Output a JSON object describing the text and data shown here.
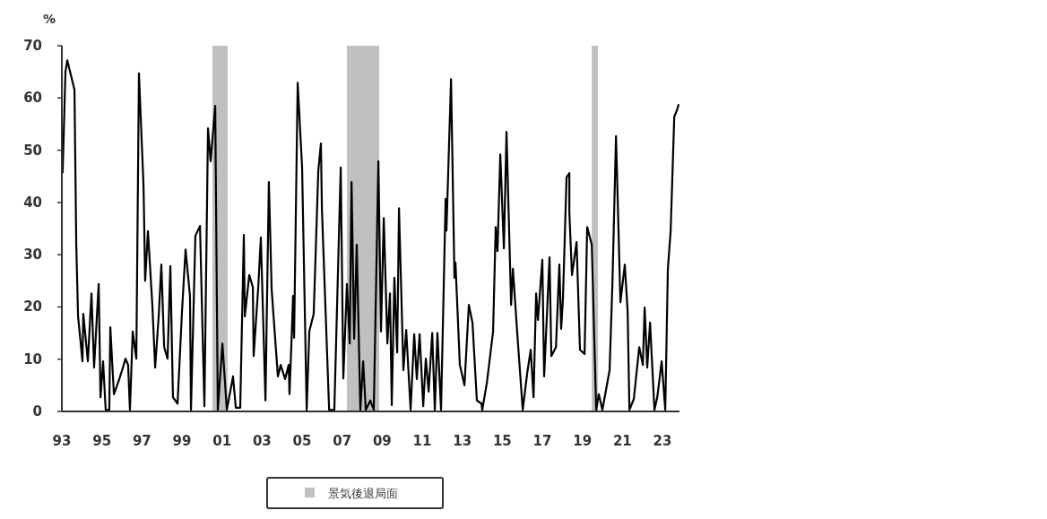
{
  "chart_data": {
    "type": "line",
    "ylabel": "%",
    "legend": "bottom",
    "grid": false,
    "marker": "none",
    "line_style": "solid",
    "xlim": [
      1993,
      2023.85
    ],
    "ylim": [
      0,
      70
    ],
    "xticks": [
      {
        "value": 1993,
        "label": "93"
      },
      {
        "value": 1995,
        "label": "95"
      },
      {
        "value": 1997,
        "label": "97"
      },
      {
        "value": 1999,
        "label": "99"
      },
      {
        "value": 2001,
        "label": "01"
      },
      {
        "value": 2003,
        "label": "03"
      },
      {
        "value": 2005,
        "label": "05"
      },
      {
        "value": 2007,
        "label": "07"
      },
      {
        "value": 2009,
        "label": "09"
      },
      {
        "value": 2011,
        "label": "11"
      },
      {
        "value": 2013,
        "label": "13"
      },
      {
        "value": 2015,
        "label": "15"
      },
      {
        "value": 2017,
        "label": "17"
      },
      {
        "value": 2019,
        "label": "19"
      },
      {
        "value": 2021,
        "label": "21"
      },
      {
        "value": 2023,
        "label": "23"
      }
    ],
    "yticks": [
      0,
      10,
      20,
      30,
      40,
      50,
      60,
      70
    ],
    "bands": [
      {
        "axis": "x",
        "from": 2000.52,
        "to": 2001.28,
        "label": "景気後退局面",
        "color": "#c0c0c0"
      },
      {
        "axis": "x",
        "from": 2007.24,
        "to": 2008.85,
        "color": "#c0c0c0"
      },
      {
        "axis": "x",
        "from": 2019.47,
        "to": 2019.78,
        "color": "#c0c0c0"
      }
    ],
    "series": [
      {
        "color": "#000000",
        "x": [
          1993.04,
          1993.18,
          1993.27,
          1993.63,
          1993.72,
          1993.81,
          1994.03,
          1994.07,
          1994.3,
          1994.48,
          1994.61,
          1994.84,
          1994.93,
          1995.06,
          1995.19,
          1995.37,
          1995.42,
          1995.6,
          1995.87,
          1996.05,
          1996.18,
          1996.31,
          1996.4,
          1996.54,
          1996.72,
          1996.85,
          1997.08,
          1997.16,
          1997.3,
          1997.52,
          1997.66,
          1997.84,
          1997.97,
          1998.11,
          1998.28,
          1998.42,
          1998.55,
          1998.78,
          1999.0,
          1999.18,
          1999.4,
          1999.45,
          1999.67,
          1999.9,
          2000.12,
          2000.3,
          2000.43,
          2000.66,
          2000.79,
          2001.02,
          2001.24,
          2001.55,
          2001.69,
          2001.91,
          2002.09,
          2002.14,
          2002.36,
          2002.54,
          2002.58,
          2002.81,
          2002.94,
          2003.17,
          2003.34,
          2003.48,
          2003.79,
          2003.93,
          2004.15,
          2004.33,
          2004.37,
          2004.46,
          2004.55,
          2004.6,
          2004.78,
          2005.0,
          2005.23,
          2005.36,
          2005.58,
          2005.81,
          2005.94,
          2005.99,
          2006.35,
          2006.61,
          2006.93,
          2007.06,
          2007.24,
          2007.38,
          2007.47,
          2007.6,
          2007.73,
          2007.91,
          2008.05,
          2008.18,
          2008.41,
          2008.58,
          2008.63,
          2008.81,
          2008.94,
          2009.08,
          2009.26,
          2009.39,
          2009.48,
          2009.61,
          2009.75,
          2009.84,
          2010.06,
          2010.2,
          2010.42,
          2010.6,
          2010.73,
          2010.87,
          2011.05,
          2011.18,
          2011.32,
          2011.5,
          2011.63,
          2011.76,
          2011.94,
          2012.17,
          2012.21,
          2012.44,
          2012.61,
          2012.66,
          2012.88,
          2013.11,
          2013.33,
          2013.51,
          2013.73,
          2013.96,
          2014.0,
          2014.23,
          2014.54,
          2014.67,
          2014.76,
          2014.9,
          2015.08,
          2015.21,
          2015.44,
          2015.53,
          2015.75,
          2016.02,
          2016.24,
          2016.42,
          2016.56,
          2016.69,
          2016.78,
          2017.0,
          2017.09,
          2017.36,
          2017.45,
          2017.68,
          2017.85,
          2017.94,
          2018.03,
          2018.21,
          2018.35,
          2018.35,
          2018.48,
          2018.71,
          2018.88,
          2019.11,
          2019.24,
          2019.47,
          2019.69,
          2019.82,
          2020.0,
          2020.36,
          2020.5,
          2020.68,
          2020.9,
          2021.12,
          2021.26,
          2021.35,
          2021.57,
          2021.84,
          2022.02,
          2022.11,
          2022.24,
          2022.38,
          2022.6,
          2022.74,
          2022.96,
          2023.14,
          2023.27,
          2023.41,
          2023.59,
          2023.72,
          2023.81
        ],
        "values": [
          45.6,
          65,
          67.2,
          61.6,
          31.9,
          18.2,
          9.6,
          18.7,
          9.6,
          22.6,
          8.4,
          24.4,
          2.7,
          9.6,
          0.3,
          0.3,
          16.1,
          3.3,
          6.2,
          8.4,
          10.1,
          8.9,
          0.3,
          15.3,
          10.1,
          64.7,
          43.2,
          25,
          34.5,
          20.4,
          8.4,
          18.4,
          28.1,
          12.3,
          10.1,
          27.8,
          2.7,
          1.5,
          19,
          31,
          22.1,
          0.3,
          33.6,
          35.5,
          1,
          54.2,
          47.9,
          58.5,
          0.3,
          13,
          0.3,
          6.7,
          0.7,
          0.7,
          33.8,
          18.2,
          26.1,
          23.8,
          10.6,
          23.8,
          33.3,
          2.1,
          43.9,
          23.3,
          6.7,
          8.9,
          6.2,
          8.9,
          3.3,
          12.3,
          22.1,
          14.1,
          62.9,
          46.7,
          0.3,
          15.3,
          18.7,
          46.1,
          51.3,
          38.8,
          0.3,
          0.3,
          46.7,
          6.3,
          24.4,
          13,
          43.9,
          13.9,
          31.9,
          0.3,
          9.6,
          0.3,
          2.1,
          0.3,
          10.6,
          47.9,
          15.3,
          37,
          13,
          22.6,
          1.2,
          25.6,
          11.3,
          38.9,
          7.9,
          15.6,
          0.3,
          14.8,
          6.2,
          14.8,
          1,
          10.1,
          3.8,
          15,
          0.3,
          15,
          0.3,
          40.7,
          34.6,
          63.6,
          25.6,
          28.5,
          8.9,
          5,
          20.4,
          17,
          2.1,
          1.5,
          0.3,
          5.5,
          15.3,
          35.3,
          30.7,
          49.2,
          31.2,
          53.5,
          20.4,
          27.3,
          14.8,
          0.3,
          7.2,
          11.8,
          2.7,
          22.6,
          17.5,
          29,
          6.7,
          29.5,
          10.6,
          12.3,
          28.1,
          15.8,
          21.6,
          44.8,
          45.6,
          38.1,
          26.1,
          32.4,
          11.8,
          11,
          35.3,
          31.9,
          0.3,
          3.3,
          0.3,
          7.9,
          24.4,
          52.7,
          20.9,
          28.1,
          19.2,
          0.3,
          2.4,
          12.3,
          8.9,
          19.9,
          8.4,
          17,
          0.3,
          2.7,
          9.6,
          0.3,
          27.3,
          34.6,
          56.4,
          57.6,
          58.8
        ]
      }
    ]
  }
}
